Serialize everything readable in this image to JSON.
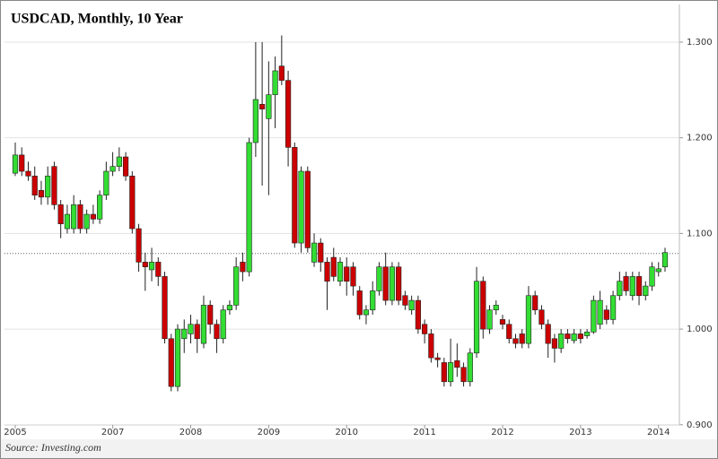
{
  "chart_data": {
    "type": "candlestick",
    "title": "USDCAD, Monthly, 10 Year",
    "source": "Source: Investing.com",
    "categories": [
      "2005",
      null,
      null,
      null,
      null,
      null,
      null,
      null,
      null,
      null,
      null,
      null,
      null,
      null,
      null,
      "2007",
      null,
      null,
      null,
      null,
      null,
      null,
      null,
      null,
      null,
      null,
      null,
      "2008",
      null,
      null,
      null,
      null,
      null,
      null,
      null,
      null,
      null,
      null,
      null,
      "2009",
      null,
      null,
      null,
      null,
      null,
      null,
      null,
      null,
      null,
      null,
      null,
      "2010",
      null,
      null,
      null,
      null,
      null,
      null,
      null,
      null,
      null,
      null,
      null,
      "2011",
      null,
      null,
      null,
      null,
      null,
      null,
      null,
      null,
      null,
      null,
      null,
      "2012",
      null,
      null,
      null,
      null,
      null,
      null,
      null,
      null,
      null,
      null,
      null,
      "2013",
      null,
      null,
      null,
      null,
      null,
      null,
      null,
      null,
      null,
      null,
      null,
      "2014",
      null
    ],
    "open": [
      1.163,
      1.182,
      1.165,
      1.16,
      1.145,
      1.138,
      1.17,
      1.13,
      1.105,
      1.105,
      1.13,
      1.105,
      1.12,
      1.115,
      1.14,
      1.165,
      1.17,
      1.18,
      1.16,
      1.105,
      1.07,
      1.062,
      1.07,
      1.055,
      0.99,
      0.94,
      0.99,
      0.995,
      1.005,
      0.985,
      1.025,
      1.005,
      0.99,
      1.02,
      1.025,
      1.07,
      1.06,
      1.195,
      1.235,
      1.22,
      1.245,
      1.275,
      1.26,
      1.19,
      1.09,
      1.165,
      1.07,
      1.09,
      1.07,
      1.075,
      1.05,
      1.065,
      1.065,
      1.04,
      1.015,
      1.02,
      1.04,
      1.065,
      1.03,
      1.065,
      1.035,
      1.02,
      1.03,
      1.005,
      0.995,
      0.97,
      0.965,
      0.945,
      0.967,
      0.96,
      0.945,
      0.975,
      1.05,
      1.0,
      1.02,
      1.01,
      1.005,
      0.99,
      0.995,
      0.985,
      1.035,
      1.02,
      1.005,
      0.99,
      0.98,
      0.995,
      0.988,
      0.995,
      0.993,
      0.997,
      1.005,
      1.02,
      1.01,
      1.035,
      1.055,
      1.035,
      1.055,
      1.035,
      1.045,
      1.06,
      1.065
    ],
    "high": [
      1.195,
      1.19,
      1.175,
      1.17,
      1.155,
      1.17,
      1.175,
      1.135,
      1.13,
      1.14,
      1.135,
      1.125,
      1.13,
      1.145,
      1.175,
      1.185,
      1.19,
      1.185,
      1.165,
      1.11,
      1.08,
      1.085,
      1.075,
      1.06,
      0.995,
      1.005,
      1.01,
      1.015,
      1.01,
      1.035,
      1.03,
      1.01,
      1.025,
      1.03,
      1.075,
      1.08,
      1.2,
      1.3,
      1.3,
      1.28,
      1.285,
      1.307,
      1.27,
      1.195,
      1.17,
      1.17,
      1.1,
      1.095,
      1.075,
      1.085,
      1.075,
      1.075,
      1.07,
      1.045,
      1.025,
      1.05,
      1.07,
      1.08,
      1.07,
      1.07,
      1.04,
      1.035,
      1.035,
      1.01,
      1.0,
      0.975,
      0.97,
      0.99,
      0.985,
      0.965,
      0.98,
      1.065,
      1.055,
      1.025,
      1.03,
      1.015,
      1.01,
      0.995,
      1.0,
      1.045,
      1.04,
      1.025,
      1.01,
      0.995,
      1.0,
      1.0,
      1.0,
      1.0,
      1.0,
      1.035,
      1.04,
      1.025,
      1.04,
      1.06,
      1.06,
      1.06,
      1.06,
      1.05,
      1.07,
      1.07,
      1.085
    ],
    "low": [
      1.16,
      1.16,
      1.155,
      1.135,
      1.13,
      1.13,
      1.125,
      1.095,
      1.1,
      1.1,
      1.1,
      1.1,
      1.11,
      1.11,
      1.135,
      1.16,
      1.165,
      1.155,
      1.1,
      1.06,
      1.04,
      1.05,
      1.045,
      0.985,
      0.935,
      0.935,
      0.975,
      0.985,
      0.975,
      0.98,
      0.995,
      0.975,
      0.985,
      1.015,
      1.02,
      1.05,
      1.055,
      1.18,
      1.15,
      1.14,
      1.21,
      1.255,
      1.17,
      1.085,
      1.08,
      1.08,
      1.065,
      1.06,
      1.02,
      1.05,
      1.045,
      1.035,
      1.035,
      1.01,
      1.005,
      1.015,
      1.035,
      1.025,
      1.025,
      1.025,
      1.02,
      1.015,
      0.995,
      0.985,
      0.965,
      0.96,
      0.94,
      0.94,
      0.95,
      0.94,
      0.94,
      0.97,
      0.99,
      0.995,
      1.015,
      1.0,
      0.985,
      0.98,
      0.98,
      0.98,
      1.015,
      1.0,
      0.97,
      0.965,
      0.975,
      0.985,
      0.985,
      0.985,
      0.99,
      0.995,
      1.0,
      1.005,
      1.005,
      1.03,
      1.035,
      1.03,
      1.025,
      1.03,
      1.04,
      1.055,
      1.06
    ],
    "close": [
      1.182,
      1.165,
      1.16,
      1.14,
      1.138,
      1.16,
      1.13,
      1.11,
      1.12,
      1.13,
      1.105,
      1.12,
      1.115,
      1.14,
      1.165,
      1.17,
      1.18,
      1.16,
      1.105,
      1.07,
      1.065,
      1.07,
      1.055,
      0.99,
      0.94,
      1.0,
      1.0,
      1.005,
      0.99,
      1.025,
      1.005,
      0.99,
      1.02,
      1.025,
      1.065,
      1.06,
      1.195,
      1.24,
      1.23,
      1.245,
      1.27,
      1.26,
      1.19,
      1.09,
      1.165,
      1.085,
      1.09,
      1.07,
      1.05,
      1.055,
      1.07,
      1.05,
      1.045,
      1.015,
      1.02,
      1.04,
      1.065,
      1.03,
      1.065,
      1.03,
      1.025,
      1.03,
      1.0,
      0.995,
      0.97,
      0.968,
      0.945,
      0.965,
      0.96,
      0.945,
      0.975,
      1.05,
      1.0,
      1.02,
      1.025,
      1.005,
      0.99,
      0.985,
      0.985,
      1.035,
      1.02,
      1.005,
      0.985,
      0.98,
      0.995,
      0.99,
      0.995,
      0.99,
      0.997,
      1.03,
      1.03,
      1.01,
      1.035,
      1.05,
      1.04,
      1.055,
      1.035,
      1.045,
      1.065,
      1.063,
      1.08
    ],
    "up_color": "#33dd33",
    "down_color": "#cc0000",
    "reference_line": 1.079,
    "ylim": [
      0.9,
      1.34
    ],
    "yticks": [
      {
        "value": 0.9,
        "label": "0.900"
      },
      {
        "value": 1.0,
        "label": "1.000"
      },
      {
        "value": 1.1,
        "label": "1.100"
      },
      {
        "value": 1.2,
        "label": "1.200"
      },
      {
        "value": 1.3,
        "label": "1.300"
      }
    ],
    "grid": true
  }
}
